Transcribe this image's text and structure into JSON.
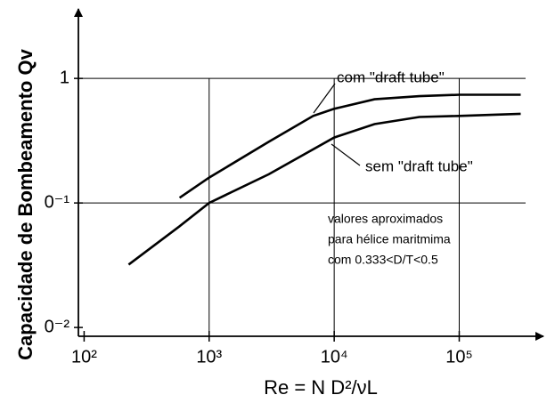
{
  "chart_data": {
    "type": "line",
    "y_label": "Capacidade de Bombeamento Qv",
    "x_label": "Re  = N D²/νL",
    "x_log": true,
    "y_log": true,
    "grid": true,
    "xlim": [
      90,
      400000
    ],
    "ylim": [
      0.0085,
      3.5
    ],
    "xticks": [
      {
        "value": 100,
        "label": "10²"
      },
      {
        "value": 1000,
        "label": "10³"
      },
      {
        "value": 10000,
        "label": "10⁴"
      },
      {
        "value": 100000,
        "label": "10⁵"
      }
    ],
    "yticks": [
      {
        "value": 0.01,
        "label": "0⁻²"
      },
      {
        "value": 0.1,
        "label": "0⁻¹"
      },
      1
    ],
    "series": [
      {
        "name": "com \"draft tube\"",
        "color": "#000000",
        "x": [
          580,
          1000,
          3000,
          6800,
          10000,
          21000,
          48000,
          100000,
          310000
        ],
        "values": [
          0.11,
          0.16,
          0.31,
          0.5,
          0.57,
          0.68,
          0.72,
          0.74,
          0.74
        ]
      },
      {
        "name": "sem \"draft tube\"",
        "color": "#000000",
        "x": [
          227,
          580,
          1000,
          3000,
          10000,
          21000,
          48000,
          100000,
          310000
        ],
        "values": [
          0.032,
          0.065,
          0.1,
          0.17,
          0.335,
          0.43,
          0.49,
          0.5,
          0.52
        ]
      }
    ],
    "annotation": [
      "valores aproximados",
      "para hélice maritmima",
      "com 0.333<D/T<0.5"
    ]
  }
}
